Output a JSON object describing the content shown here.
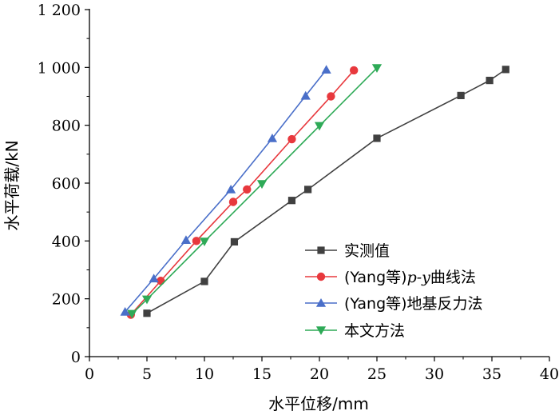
{
  "chart_data": {
    "type": "line",
    "xlabel": "水平位移/mm",
    "ylabel": "水平荷载/kN",
    "xlim": [
      0,
      40
    ],
    "ylim": [
      0,
      1200
    ],
    "x_ticks": [
      0,
      5,
      10,
      15,
      20,
      25,
      30,
      35,
      40
    ],
    "x_tick_labels": [
      "0",
      "5",
      "10",
      "15",
      "20",
      "25",
      "30",
      "35",
      "40"
    ],
    "y_ticks": [
      0,
      200,
      400,
      600,
      800,
      1000,
      1200
    ],
    "y_tick_labels": [
      "0",
      "200",
      "400",
      "600",
      "800",
      "1 000",
      "1 200"
    ],
    "grid": false,
    "legend_position": "center-right",
    "series": [
      {
        "name": "实测值",
        "color": "#404040",
        "marker": "square",
        "x": [
          5.0,
          10.0,
          12.6,
          17.6,
          19.0,
          25.0,
          32.3,
          34.8,
          36.2
        ],
        "y": [
          150,
          260,
          397,
          540,
          578,
          755,
          903,
          955,
          993
        ]
      },
      {
        "name": "(Yang等)p-y曲线法",
        "name_parts": {
          "prefix": "(Yang等)",
          "italic": "p-y",
          "suffix": "曲线法"
        },
        "color": "#e8383d",
        "marker": "circle",
        "x": [
          3.6,
          6.2,
          9.3,
          12.5,
          13.7,
          17.6,
          21.0,
          23.0
        ],
        "y": [
          145,
          262,
          400,
          535,
          578,
          752,
          900,
          990
        ]
      },
      {
        "name": "(Yang等)地基反力法",
        "color": "#4a6fc9",
        "marker": "triangle-up",
        "x": [
          3.1,
          5.6,
          8.4,
          12.3,
          15.9,
          18.8,
          20.6
        ],
        "y": [
          155,
          270,
          403,
          578,
          755,
          902,
          992
        ]
      },
      {
        "name": "本文方法",
        "color": "#2eaa57",
        "marker": "triangle-down",
        "x": [
          3.7,
          5.0,
          10.0,
          15.0,
          20.0,
          25.0
        ],
        "y": [
          148,
          198,
          398,
          597,
          798,
          998
        ]
      }
    ]
  }
}
